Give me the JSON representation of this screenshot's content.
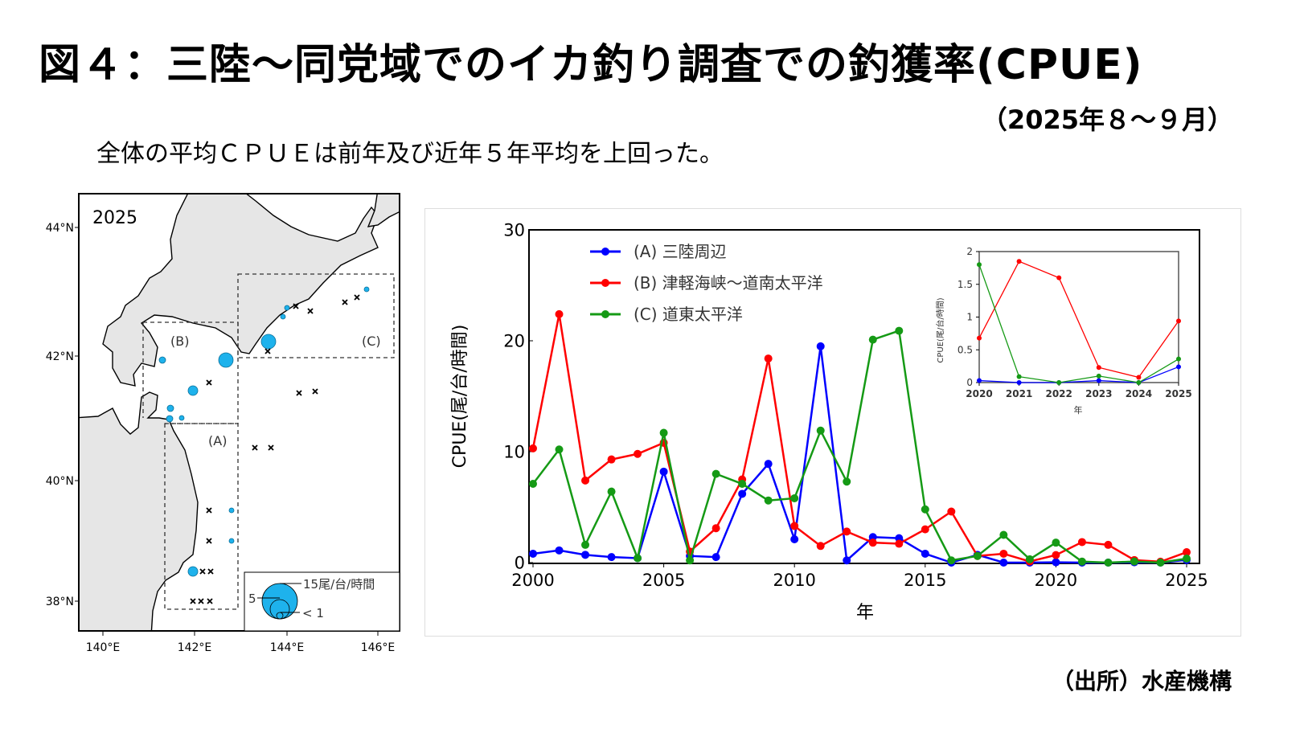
{
  "header": {
    "title": "図４：三陸～同党域でのイカ釣り調査での釣獲率(CPUE)",
    "period": "（2025年８～９月）",
    "summary": "全体の平均ＣＰＵＥは前年及び近年５年平均を上回った。"
  },
  "footer": {
    "source": "（出所）水産機構"
  },
  "map": {
    "year_label": "2025",
    "lat_labels": [
      "44°N",
      "42°N",
      "40°N",
      "38°N"
    ],
    "lon_labels": [
      "140°E",
      "142°E",
      "144°E",
      "146°E"
    ],
    "area_labels": {
      "A": "(A)",
      "B": "(B)",
      "C": "(C)"
    },
    "legend": {
      "max": "15尾/台/時間",
      "mid": "5",
      "min": "< 1"
    },
    "circle_color": "#1eb2ec"
  },
  "chart_data": [
    {
      "type": "line",
      "title": "",
      "xlabel": "年",
      "ylabel": "CPUE(尾/台/時間)",
      "xlim": [
        2000,
        2025
      ],
      "ylim": [
        0,
        30
      ],
      "xticks": [
        2000,
        2005,
        2010,
        2015,
        2020,
        2025
      ],
      "yticks": [
        0,
        10,
        20,
        30
      ],
      "legend_position": "top-left",
      "x": [
        2000,
        2001,
        2002,
        2003,
        2004,
        2005,
        2006,
        2007,
        2008,
        2009,
        2010,
        2011,
        2012,
        2013,
        2014,
        2015,
        2016,
        2017,
        2018,
        2019,
        2020,
        2021,
        2022,
        2023,
        2024,
        2025
      ],
      "series": [
        {
          "name": "(A) 三陸周辺",
          "color": "#0000ff",
          "values": [
            0.8,
            1.1,
            0.7,
            0.5,
            0.4,
            8.2,
            0.6,
            0.5,
            6.2,
            8.9,
            2.1,
            19.5,
            0.2,
            2.3,
            2.2,
            0.8,
            0.0,
            0.7,
            0.0,
            0.0,
            0.03,
            0.0,
            0.0,
            0.03,
            0.0,
            0.24
          ]
        },
        {
          "name": "(B) 津軽海峡～道南太平洋",
          "color": "#ff0000",
          "values": [
            10.3,
            22.4,
            7.4,
            9.3,
            9.8,
            10.8,
            1.0,
            3.1,
            7.5,
            18.4,
            3.3,
            1.5,
            2.8,
            1.8,
            1.7,
            3.0,
            4.6,
            0.6,
            0.8,
            0.1,
            0.68,
            1.85,
            1.6,
            0.23,
            0.08,
            0.94
          ]
        },
        {
          "name": "(C) 道東太平洋",
          "color": "#159a15",
          "values": [
            7.1,
            10.2,
            1.6,
            6.4,
            0.4,
            11.7,
            0.2,
            8.0,
            7.1,
            5.6,
            5.8,
            11.9,
            7.3,
            20.1,
            20.9,
            4.8,
            0.2,
            0.6,
            2.5,
            0.3,
            1.8,
            0.09,
            0.0,
            0.1,
            0.0,
            0.36
          ]
        }
      ]
    },
    {
      "type": "line",
      "title": "",
      "xlabel": "年",
      "ylabel": "CPUE(尾/台/時間)",
      "xlim": [
        2020,
        2025
      ],
      "ylim": [
        0,
        2
      ],
      "xticks": [
        2020,
        2021,
        2022,
        2023,
        2024,
        2025
      ],
      "yticks": [
        0,
        0.5,
        1,
        1.5,
        2
      ],
      "ytick_labels": [
        "0",
        "0.5",
        "1",
        "1.5",
        "2"
      ],
      "x": [
        2020,
        2021,
        2022,
        2023,
        2024,
        2025
      ],
      "series": [
        {
          "name": "(A) 三陸周辺",
          "color": "#0000ff",
          "values": [
            0.03,
            0.0,
            0.0,
            0.03,
            0.0,
            0.24
          ]
        },
        {
          "name": "(B) 津軽海峡～道南太平洋",
          "color": "#ff0000",
          "values": [
            0.68,
            1.85,
            1.6,
            0.23,
            0.08,
            0.94
          ]
        },
        {
          "name": "(C) 道東太平洋",
          "color": "#159a15",
          "values": [
            1.8,
            0.09,
            0.0,
            0.1,
            0.0,
            0.36
          ]
        }
      ]
    }
  ]
}
